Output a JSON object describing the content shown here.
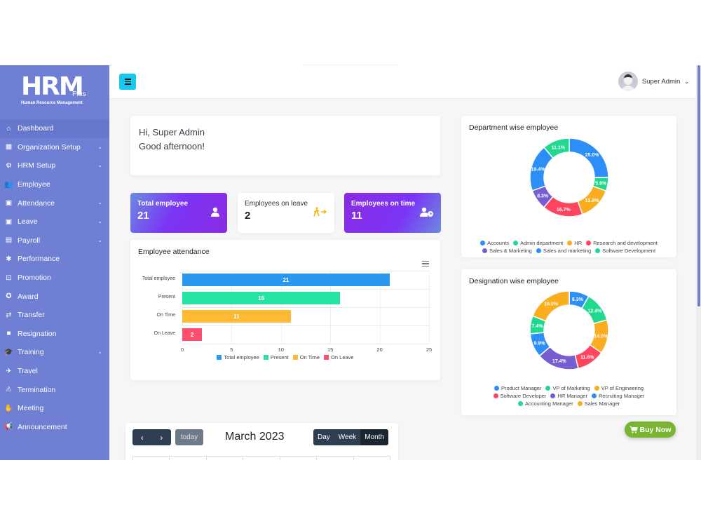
{
  "brand": {
    "logo_main": "HRM",
    "logo_plus": "Plus",
    "logo_sub": "Human Resource Management"
  },
  "sidebar": {
    "items": [
      {
        "label": "Dashboard",
        "icon": "home-icon",
        "glyph": "⌂",
        "active": true,
        "has_submenu": false
      },
      {
        "label": "Organization Setup",
        "icon": "building-icon",
        "glyph": "▦",
        "active": false,
        "has_submenu": true
      },
      {
        "label": "HRM Setup",
        "icon": "gears-icon",
        "glyph": "⚙",
        "active": false,
        "has_submenu": true
      },
      {
        "label": "Employee",
        "icon": "users-icon",
        "glyph": "👥",
        "active": false,
        "has_submenu": false
      },
      {
        "label": "Attendance",
        "icon": "id-badge-icon",
        "glyph": "▣",
        "active": false,
        "has_submenu": true
      },
      {
        "label": "Leave",
        "icon": "id-badge-icon",
        "glyph": "▣",
        "active": false,
        "has_submenu": true
      },
      {
        "label": "Payroll",
        "icon": "file-icon",
        "glyph": "▤",
        "active": false,
        "has_submenu": true
      },
      {
        "label": "Performance",
        "icon": "running-icon",
        "glyph": "✱",
        "active": false,
        "has_submenu": false
      },
      {
        "label": "Promotion",
        "icon": "chalkboard-icon",
        "glyph": "⊡",
        "active": false,
        "has_submenu": false
      },
      {
        "label": "Award",
        "icon": "award-icon",
        "glyph": "✪",
        "active": false,
        "has_submenu": false
      },
      {
        "label": "Transfer",
        "icon": "transfer-icon",
        "glyph": "⇄",
        "active": false,
        "has_submenu": false
      },
      {
        "label": "Resignation",
        "icon": "sticky-note-icon",
        "glyph": "■",
        "active": false,
        "has_submenu": false
      },
      {
        "label": "Training",
        "icon": "graduation-cap-icon",
        "glyph": "🎓",
        "active": false,
        "has_submenu": true
      },
      {
        "label": "Travel",
        "icon": "plane-icon",
        "glyph": "✈",
        "active": false,
        "has_submenu": false
      },
      {
        "label": "Termination",
        "icon": "person-exit-icon",
        "glyph": "⚠",
        "active": false,
        "has_submenu": false
      },
      {
        "label": "Meeting",
        "icon": "handshake-icon",
        "glyph": "✋",
        "active": false,
        "has_submenu": false
      },
      {
        "label": "Announcement",
        "icon": "bullhorn-icon",
        "glyph": "📢",
        "active": false,
        "has_submenu": false
      }
    ],
    "chevron": "⌄"
  },
  "header": {
    "user_name": "Super Admin",
    "caret": "⌄"
  },
  "greeting": {
    "line1": "Hi, Super Admin",
    "line2": "Good afternoon!"
  },
  "stats": [
    {
      "label": "Total employee",
      "value": "21",
      "icon": "user-icon"
    },
    {
      "label": "Employees on leave",
      "value": "2",
      "icon": "walking-exit-icon"
    },
    {
      "label": "Employees on time",
      "value": "11",
      "icon": "user-clock-icon"
    }
  ],
  "colors": {
    "sidebar": "#6e7fd4",
    "menu_button": "#14c8ef",
    "buy_now": "#7ab532",
    "calendar_buttons": "#2c3e50"
  },
  "chart_data": [
    {
      "type": "bar",
      "orientation": "horizontal",
      "title": "Employee attendance",
      "categories": [
        "Total employee",
        "Present",
        "On Time",
        "On Leave"
      ],
      "values": [
        21,
        16,
        11,
        2
      ],
      "colors": [
        "#2b98f0",
        "#27e3a4",
        "#feb935",
        "#ff4f6e"
      ],
      "xlabel": "",
      "ylabel": "",
      "xlim": [
        0,
        25
      ],
      "xticks": [
        "0",
        "5",
        "10",
        "15",
        "20",
        "25"
      ],
      "legend": [
        "Total employee",
        "Present",
        "On Time",
        "On Leave"
      ],
      "legend_position": "bottom",
      "grid": true,
      "data_labels": true
    },
    {
      "type": "pie",
      "variant": "donut",
      "title": "Department wise employee",
      "categories": [
        "Accounts",
        "Admin department",
        "HR",
        "Research and development",
        "Sales & Marketing",
        "Sales and marketing",
        "Software Development"
      ],
      "values": [
        25.0,
        5.6,
        13.9,
        16.7,
        8.3,
        19.4,
        11.1
      ],
      "labels": [
        "25.0%",
        "5.6%",
        "13.9%",
        "16.7%",
        "8.3%",
        "19.4%",
        "11.1%"
      ],
      "colors": [
        "#2b8ff7",
        "#21d98e",
        "#f9ad1f",
        "#ff4560",
        "#775dd0",
        "#2b8ff7",
        "#21d98e"
      ],
      "legend_position": "bottom"
    },
    {
      "type": "pie",
      "variant": "donut",
      "title": "Designation wise employee",
      "categories": [
        "Product Manager",
        "VP of Marketing",
        "VP of Engineering",
        "Software Developer",
        "HR Manager",
        "Recruiting Manager",
        "Accounting Manager",
        "Sales Manager"
      ],
      "values": [
        8.3,
        12.4,
        14.0,
        11.6,
        17.4,
        9.9,
        7.4,
        19.0
      ],
      "labels": [
        "8.3%",
        "12.4%",
        "14.0%",
        "11.6%",
        "17.4%",
        "9.9%",
        "7.4%",
        "19.0%"
      ],
      "colors": [
        "#2b8ff7",
        "#21d98e",
        "#f9ad1f",
        "#ff4560",
        "#775dd0",
        "#2b8ff7",
        "#21d98e",
        "#f9ad1f"
      ],
      "legend_position": "bottom"
    }
  ],
  "attendance": {
    "title": "Employee attendance",
    "menu_icon": "hamburger-icon"
  },
  "calendar": {
    "prev": "‹",
    "next": "›",
    "today": "today",
    "title": "March 2023",
    "views": [
      "Day",
      "Week",
      "Month"
    ],
    "active_view": "Month"
  },
  "buy_now": {
    "label": "Buy Now",
    "icon": "cart-icon"
  }
}
